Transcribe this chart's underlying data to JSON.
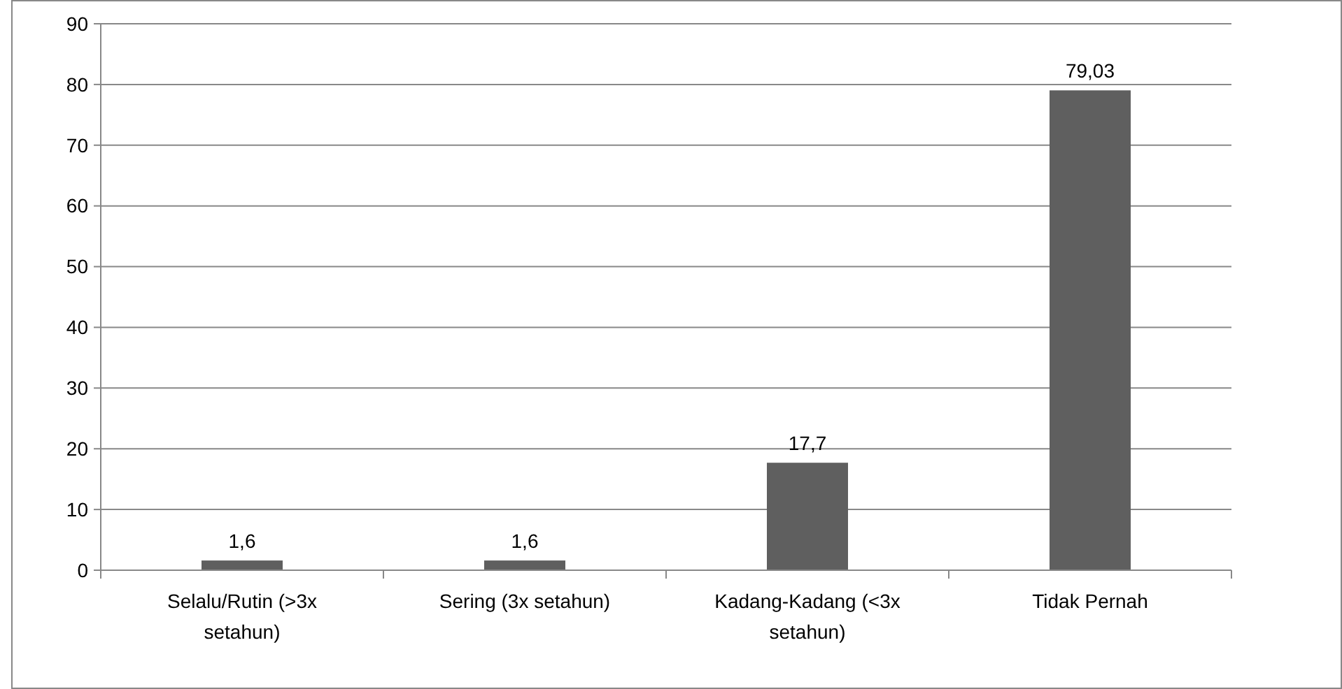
{
  "chart_data": {
    "type": "bar",
    "categories": [
      "Selalu/Rutin (>3x setahun)",
      "Sering (3x setahun)",
      "Kadang-Kadang (<3x setahun)",
      "Tidak Pernah"
    ],
    "values": [
      1.6,
      1.6,
      17.7,
      79.03
    ],
    "value_labels": [
      "1,6",
      "1,6",
      "17,7",
      "79,03"
    ],
    "color": "#5f5f5f",
    "ylim": [
      0,
      90
    ],
    "yticks": [
      0,
      10,
      20,
      30,
      40,
      50,
      60,
      70,
      80,
      90
    ],
    "grid": "y"
  }
}
